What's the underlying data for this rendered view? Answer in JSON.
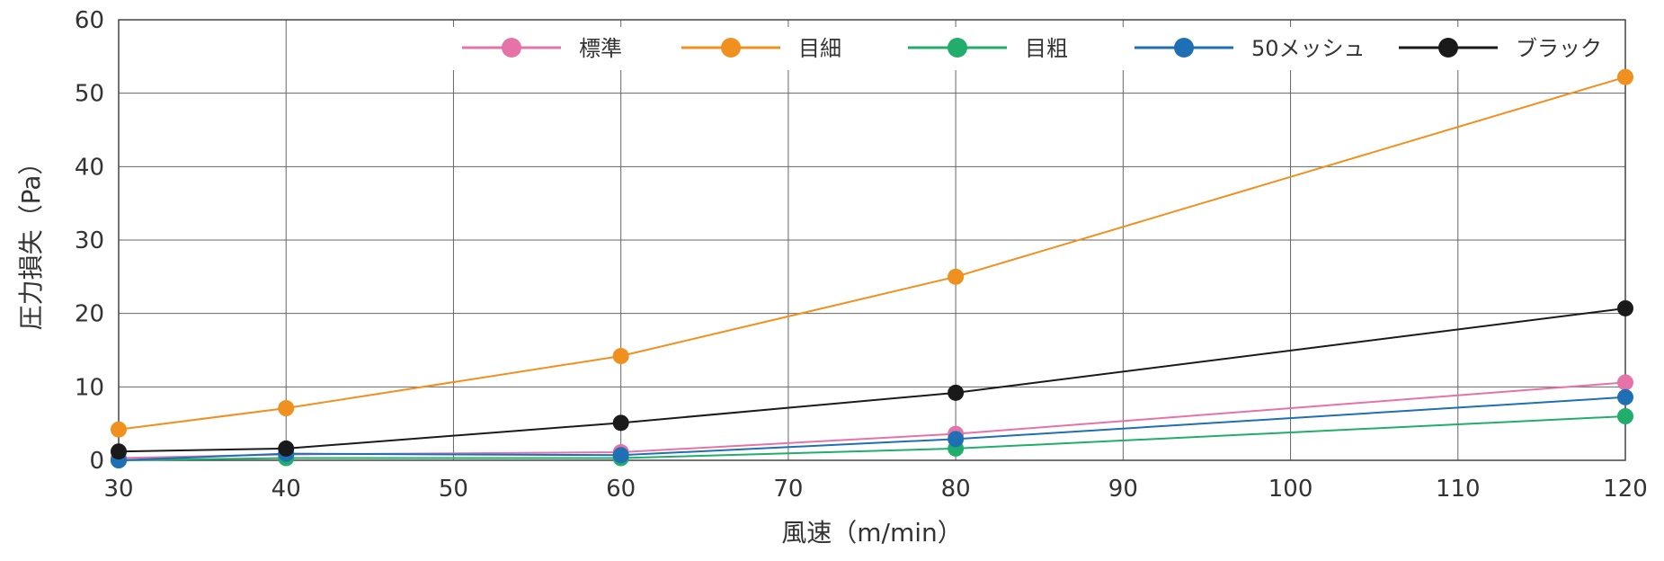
{
  "chart_data": {
    "type": "line",
    "title": "",
    "xlabel": "風速（m/min）",
    "ylabel": "圧力損失（Pa）",
    "xlim": [
      30,
      120
    ],
    "ylim": [
      0,
      60
    ],
    "xticks": [
      30,
      40,
      50,
      60,
      70,
      80,
      90,
      100,
      110,
      120
    ],
    "yticks": [
      0,
      10,
      20,
      30,
      40,
      50,
      60
    ],
    "grid": true,
    "legend_position": "top-right",
    "x": [
      30,
      40,
      60,
      80,
      120
    ],
    "series": [
      {
        "name": "標準",
        "color": "#e573a7",
        "values": [
          0.3,
          0.8,
          1.1,
          3.6,
          10.6
        ]
      },
      {
        "name": "目細",
        "color": "#f0901e",
        "values": [
          4.2,
          7.1,
          14.2,
          25.0,
          52.2
        ]
      },
      {
        "name": "目粗",
        "color": "#21ad6b",
        "values": [
          0.0,
          0.3,
          0.3,
          1.6,
          6.0
        ]
      },
      {
        "name": "50メッシュ",
        "color": "#1e6fb4",
        "values": [
          0.0,
          0.9,
          0.7,
          2.9,
          8.6
        ]
      },
      {
        "name": "ブラック",
        "color": "#1a1a1a",
        "values": [
          1.2,
          1.6,
          5.1,
          9.2,
          20.7
        ]
      }
    ]
  }
}
